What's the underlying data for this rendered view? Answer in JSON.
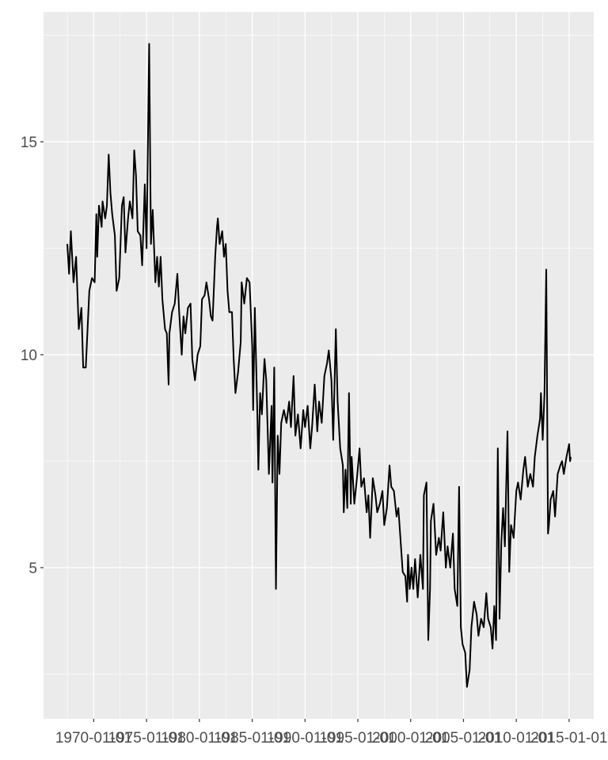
{
  "chart_data": {
    "type": "line",
    "color": "#000000",
    "grid": true,
    "minor_grid": true,
    "x": [
      "1967-07",
      "1967-09",
      "1967-11",
      "1968-02",
      "1968-05",
      "1968-08",
      "1968-11",
      "1969-01",
      "1969-04",
      "1969-08",
      "1969-11",
      "1970-02",
      "1970-04",
      "1970-05",
      "1970-07",
      "1970-10",
      "1970-11",
      "1971-02",
      "1971-04",
      "1971-06",
      "1971-08",
      "1971-10",
      "1972-01",
      "1972-03",
      "1972-06",
      "1972-09",
      "1972-11",
      "1973-01",
      "1973-04",
      "1973-06",
      "1973-09",
      "1973-11",
      "1974-01",
      "1974-03",
      "1974-06",
      "1974-08",
      "1974-11",
      "1975-01",
      "1975-04",
      "1975-06",
      "1975-08",
      "1975-11",
      "1976-01",
      "1976-03",
      "1976-05",
      "1976-07",
      "1976-10",
      "1976-12",
      "1977-02",
      "1977-03",
      "1977-06",
      "1977-09",
      "1977-12",
      "1978-02",
      "1978-05",
      "1978-07",
      "1978-09",
      "1978-12",
      "1979-03",
      "1979-05",
      "1979-08",
      "1979-11",
      "1980-02",
      "1980-04",
      "1980-07",
      "1980-09",
      "1980-12",
      "1981-02",
      "1981-04",
      "1981-07",
      "1981-09",
      "1981-10",
      "1981-12",
      "1982-03",
      "1982-05",
      "1982-07",
      "1982-09",
      "1982-11",
      "1983-02",
      "1983-04",
      "1983-06",
      "1983-09",
      "1983-12",
      "1984-01",
      "1984-04",
      "1984-07",
      "1984-10",
      "1985-01",
      "1985-02",
      "1985-04",
      "1985-07",
      "1985-08",
      "1985-10",
      "1985-12",
      "1986-03",
      "1986-05",
      "1986-08",
      "1986-11",
      "1986-12",
      "1987-02",
      "1987-04",
      "1987-06",
      "1987-08",
      "1987-10",
      "1988-01",
      "1988-04",
      "1988-07",
      "1988-09",
      "1988-12",
      "1989-02",
      "1989-05",
      "1989-08",
      "1989-11",
      "1990-01",
      "1990-04",
      "1990-07",
      "1990-09",
      "1990-12",
      "1991-03",
      "1991-05",
      "1991-08",
      "1991-11",
      "1992-02",
      "1992-04",
      "1992-07",
      "1992-09",
      "1992-12",
      "1993-02",
      "1993-05",
      "1993-08",
      "1993-09",
      "1993-11",
      "1994-01",
      "1994-03",
      "1994-05",
      "1994-06",
      "1994-09",
      "1994-12",
      "1995-03",
      "1995-05",
      "1995-08",
      "1995-11",
      "1996-01",
      "1996-03",
      "1996-06",
      "1996-09",
      "1996-11",
      "1997-02",
      "1997-05",
      "1997-07",
      "1997-10",
      "1998-01",
      "1998-03",
      "1998-06",
      "1998-09",
      "1998-11",
      "1999-01",
      "1999-04",
      "1999-07",
      "1999-09",
      "1999-10",
      "1999-12",
      "2000-02",
      "2000-04",
      "2000-06",
      "2000-09",
      "2000-12",
      "2001-03",
      "2001-04",
      "2001-07",
      "2001-09",
      "2001-11",
      "2001-12",
      "2002-03",
      "2002-06",
      "2002-09",
      "2002-11",
      "2003-02",
      "2003-05",
      "2003-07",
      "2003-10",
      "2004-01",
      "2004-03",
      "2004-06",
      "2004-08",
      "2004-10",
      "2004-12",
      "2005-03",
      "2005-05",
      "2005-08",
      "2005-10",
      "2006-01",
      "2006-04",
      "2006-06",
      "2006-09",
      "2006-12",
      "2007-03",
      "2007-05",
      "2007-08",
      "2007-10",
      "2007-12",
      "2008-02",
      "2008-04",
      "2008-06",
      "2008-08",
      "2008-10",
      "2008-12",
      "2009-03",
      "2009-05",
      "2009-07",
      "2009-10",
      "2010-01",
      "2010-03",
      "2010-06",
      "2010-09",
      "2010-11",
      "2011-02",
      "2011-05",
      "2011-08",
      "2011-10",
      "2012-01",
      "2012-04",
      "2012-05",
      "2012-07",
      "2012-09",
      "2012-11",
      "2013-01",
      "2013-02",
      "2013-04",
      "2013-07",
      "2013-09",
      "2013-12",
      "2014-03",
      "2014-05",
      "2014-07",
      "2014-10",
      "2015-01",
      "2015-02",
      "2015-03"
    ],
    "values": [
      12.6,
      11.9,
      12.9,
      11.7,
      12.3,
      10.6,
      11.1,
      9.7,
      9.7,
      11.5,
      11.8,
      11.7,
      13.3,
      12.3,
      13.5,
      13.0,
      13.6,
      13.2,
      13.5,
      14.7,
      13.8,
      13.3,
      12.8,
      11.5,
      11.8,
      13.5,
      13.7,
      12.4,
      13.2,
      13.6,
      13.2,
      14.8,
      14.2,
      12.9,
      12.8,
      12.1,
      14.0,
      12.5,
      17.3,
      12.6,
      13.4,
      11.7,
      12.3,
      11.6,
      12.3,
      11.3,
      10.6,
      10.5,
      9.3,
      10.5,
      11.0,
      11.2,
      11.9,
      11.0,
      10.0,
      10.9,
      10.5,
      11.1,
      11.2,
      9.9,
      9.4,
      10.0,
      10.2,
      11.3,
      11.4,
      11.7,
      11.3,
      10.9,
      10.8,
      12.3,
      13.0,
      13.2,
      12.6,
      12.9,
      12.3,
      12.6,
      11.5,
      11.0,
      11.0,
      9.9,
      9.1,
      9.6,
      10.3,
      11.7,
      11.2,
      11.8,
      11.7,
      10.2,
      8.7,
      11.1,
      8.5,
      7.3,
      9.1,
      8.6,
      9.9,
      9.4,
      7.2,
      8.8,
      7.0,
      9.7,
      4.5,
      8.1,
      7.2,
      8.4,
      8.7,
      8.4,
      8.9,
      8.3,
      9.5,
      8.1,
      8.6,
      7.8,
      8.7,
      8.3,
      8.8,
      7.8,
      8.3,
      9.3,
      8.2,
      8.9,
      8.4,
      9.5,
      9.8,
      10.1,
      9.4,
      8.0,
      10.6,
      8.9,
      7.8,
      7.4,
      6.3,
      7.3,
      6.4,
      9.1,
      6.5,
      7.6,
      6.5,
      7.1,
      7.8,
      6.9,
      7.1,
      6.3,
      6.7,
      5.7,
      7.1,
      6.7,
      6.3,
      6.5,
      6.8,
      6.0,
      6.4,
      7.4,
      6.9,
      6.8,
      6.2,
      6.4,
      5.8,
      4.9,
      4.8,
      4.2,
      5.3,
      4.5,
      5.0,
      4.5,
      5.2,
      4.3,
      5.3,
      4.5,
      6.7,
      7.0,
      3.3,
      4.5,
      6.1,
      6.5,
      5.3,
      5.7,
      5.4,
      6.3,
      5.0,
      5.5,
      5.0,
      5.8,
      4.5,
      4.1,
      6.9,
      3.6,
      3.2,
      3.0,
      2.2,
      2.6,
      3.6,
      4.2,
      3.9,
      3.4,
      3.8,
      3.6,
      4.4,
      3.8,
      3.6,
      3.1,
      4.1,
      3.3,
      7.8,
      3.8,
      5.6,
      6.4,
      5.5,
      8.2,
      4.9,
      6.0,
      5.7,
      6.8,
      7.0,
      6.6,
      7.3,
      7.6,
      6.9,
      7.2,
      6.9,
      7.6,
      8.1,
      8.5,
      9.1,
      8.0,
      9.1,
      12.0,
      5.8,
      6.0,
      6.6,
      6.8,
      6.2,
      7.2,
      7.4,
      7.5,
      7.2,
      7.6,
      7.9,
      7.5,
      7.6
    ],
    "xlim": [
      "1965-04-01",
      "2017-05-01"
    ],
    "xticks": [
      "1970-01-01",
      "1975-01-01",
      "1980-01-01",
      "1985-01-01",
      "1990-01-01",
      "1995-01-01",
      "2000-01-01",
      "2005-01-01",
      "2010-01-01",
      "2015-01-01"
    ],
    "ylim": [
      1.45,
      18.05
    ],
    "yticks": [
      5,
      10,
      15
    ]
  }
}
